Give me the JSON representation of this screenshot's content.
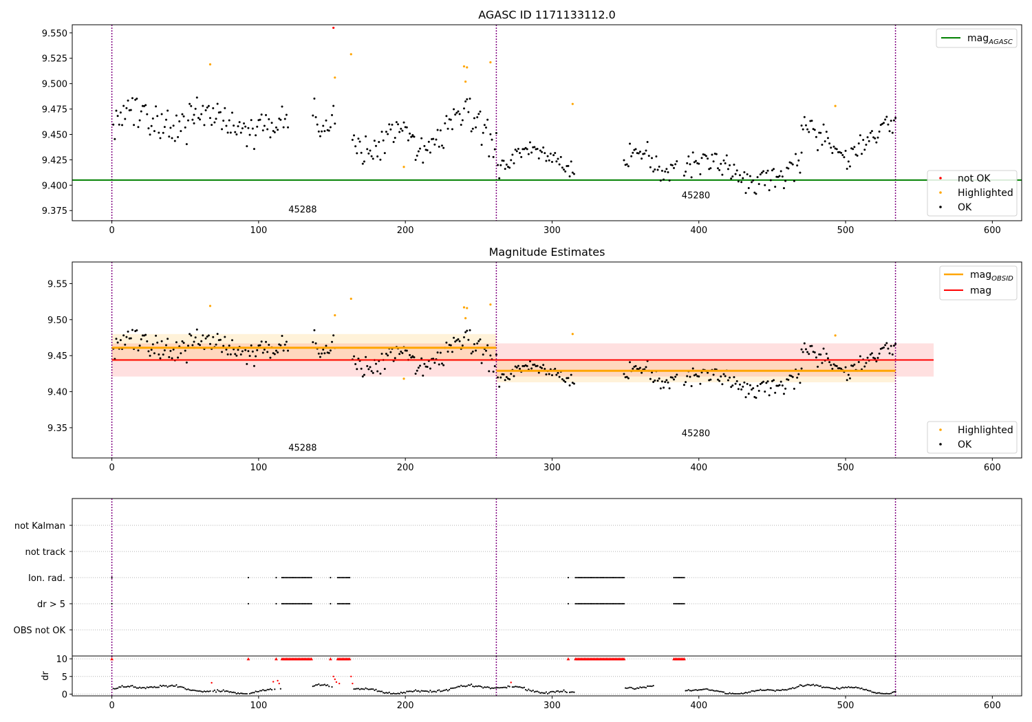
{
  "chart_data": [
    {
      "id": "top",
      "type": "scatter",
      "title": "AGASC ID 1171133112.0",
      "xlim": [
        -27,
        620
      ],
      "ylim": [
        9.365,
        9.558
      ],
      "xticks": [
        0,
        100,
        200,
        300,
        400,
        500,
        600
      ],
      "yticks": [
        9.375,
        9.4,
        9.425,
        9.45,
        9.475,
        9.5,
        9.525,
        9.55
      ],
      "ytick_labels": [
        "9.375",
        "9.400",
        "9.425",
        "9.450",
        "9.475",
        "9.500",
        "9.525",
        "9.550"
      ],
      "vlines": [
        0,
        262,
        534
      ],
      "obsid_labels": [
        {
          "text": "45288",
          "x": 130,
          "y": 9.373
        },
        {
          "text": "45280",
          "x": 398,
          "y": 9.387
        }
      ],
      "hline": {
        "name": "mag_AGASC",
        "legend_main": "mag",
        "legend_sub": "AGASC",
        "y": 9.405,
        "color": "#008000"
      },
      "legend_lines_placement": "upper-right",
      "legend_points_placement": "lower-right",
      "legend_points": [
        {
          "label": "not OK",
          "color": "#ff0000"
        },
        {
          "label": "Highlighted",
          "color": "#ffa500"
        },
        {
          "label": "OK",
          "color": "#000000"
        }
      ],
      "segments": [
        {
          "x0": 1,
          "x1": 56,
          "base": 9.466,
          "amp": 0.012,
          "noise": 0.014
        },
        {
          "x0": 56,
          "x1": 120,
          "base": 9.462,
          "amp": 0.01,
          "noise": 0.013
        },
        {
          "x0": 137,
          "x1": 152,
          "base": 9.462,
          "amp": 0.01,
          "noise": 0.01
        },
        {
          "x0": 164,
          "x1": 205,
          "base": 9.445,
          "amp": 0.01,
          "noise": 0.012
        },
        {
          "x0": 205,
          "x1": 262,
          "base": 9.452,
          "amp": 0.018,
          "noise": 0.014
        },
        {
          "x0": 263,
          "x1": 315,
          "base": 9.426,
          "amp": 0.01,
          "noise": 0.01
        },
        {
          "x0": 349,
          "x1": 385,
          "base": 9.425,
          "amp": 0.012,
          "noise": 0.011
        },
        {
          "x0": 390,
          "x1": 470,
          "base": 9.415,
          "amp": 0.01,
          "noise": 0.011
        },
        {
          "x0": 470,
          "x1": 534,
          "base": 9.446,
          "amp": 0.012,
          "noise": 0.011
        }
      ],
      "special_points": [
        {
          "x": 67,
          "y": 9.519,
          "status": "Highlighted"
        },
        {
          "x": 152,
          "y": 9.506,
          "status": "Highlighted"
        },
        {
          "x": 163,
          "y": 9.529,
          "status": "Highlighted"
        },
        {
          "x": 199,
          "y": 9.418,
          "status": "Highlighted"
        },
        {
          "x": 240,
          "y": 9.517,
          "status": "Highlighted"
        },
        {
          "x": 242,
          "y": 9.516,
          "status": "Highlighted"
        },
        {
          "x": 241,
          "y": 9.502,
          "status": "Highlighted"
        },
        {
          "x": 258,
          "y": 9.521,
          "status": "Highlighted"
        },
        {
          "x": 314,
          "y": 9.48,
          "status": "Highlighted"
        },
        {
          "x": 493,
          "y": 9.478,
          "status": "Highlighted"
        },
        {
          "x": 151,
          "y": 9.555,
          "status": "not OK"
        }
      ]
    },
    {
      "id": "middle",
      "type": "scatter",
      "title": "Magnitude Estimates",
      "xlim": [
        -27,
        620
      ],
      "ylim": [
        9.308,
        9.58
      ],
      "xticks": [
        0,
        100,
        200,
        300,
        400,
        500,
        600
      ],
      "yticks": [
        9.35,
        9.4,
        9.45,
        9.5,
        9.55
      ],
      "ytick_labels": [
        "9.35",
        "9.40",
        "9.45",
        "9.50",
        "9.55"
      ],
      "vlines": [
        0,
        262,
        534
      ],
      "obsid_labels": [
        {
          "text": "45288",
          "x": 130,
          "y": 9.318
        },
        {
          "text": "45280",
          "x": 398,
          "y": 9.338
        }
      ],
      "mag": {
        "name": "mag",
        "y": 9.444,
        "band": [
          9.421,
          9.467
        ],
        "x0": 0,
        "x1": 560,
        "color": "#ff0000"
      },
      "mag_obsid": [
        {
          "x0": 0,
          "x1": 262,
          "y": 9.461,
          "band": [
            9.442,
            9.48
          ]
        },
        {
          "x0": 262,
          "x1": 534,
          "y": 9.429,
          "band": [
            9.413,
            9.445
          ]
        }
      ],
      "legend_lines": [
        {
          "label": "mag",
          "sub": "OBSID",
          "color": "#ffa500"
        },
        {
          "label": "mag",
          "sub": "",
          "color": "#ff0000"
        }
      ],
      "legend_points": [
        {
          "label": "Highlighted",
          "color": "#ffa500"
        },
        {
          "label": "OK",
          "color": "#000000"
        }
      ]
    },
    {
      "id": "flags",
      "type": "scatter",
      "xlim": [
        -27,
        620
      ],
      "categories": [
        "not Kalman",
        "not track",
        "Ion. rad.",
        "dr > 5",
        "OBS not OK"
      ],
      "vlines": [
        0,
        262,
        534
      ],
      "flag_ranges": [
        {
          "category": "Ion. rad.",
          "ranges": [
            [
              0,
              0
            ],
            [
              93,
              93
            ],
            [
              112,
              112
            ],
            [
              116,
              136
            ],
            [
              149,
              149
            ],
            [
              154,
              162
            ],
            [
              311,
              311
            ],
            [
              316,
              349
            ],
            [
              383,
              390
            ]
          ]
        },
        {
          "category": "dr > 5",
          "ranges": [
            [
              0,
              0
            ],
            [
              93,
              93
            ],
            [
              112,
              112
            ],
            [
              116,
              136
            ],
            [
              149,
              149
            ],
            [
              154,
              162
            ],
            [
              311,
              311
            ],
            [
              316,
              349
            ],
            [
              383,
              390
            ]
          ]
        }
      ]
    },
    {
      "id": "dr",
      "type": "scatter",
      "ylabel": "dr",
      "xlim": [
        -27,
        620
      ],
      "ylim": [
        -0.5,
        10.8
      ],
      "xticks": [
        0,
        100,
        200,
        300,
        400,
        500,
        600
      ],
      "yticks": [
        0,
        5,
        10
      ],
      "ytick_labels": [
        "0",
        "5",
        "10"
      ],
      "vlines": [
        0,
        262,
        534
      ],
      "clipped_value": 10,
      "clipped_ranges": [
        [
          0,
          0
        ],
        [
          93,
          93
        ],
        [
          112,
          112
        ],
        [
          116,
          136
        ],
        [
          149,
          149
        ],
        [
          154,
          162
        ],
        [
          311,
          311
        ],
        [
          316,
          349
        ],
        [
          383,
          390
        ]
      ],
      "gaps": [
        [
          116,
          136
        ],
        [
          154,
          162
        ],
        [
          316,
          349
        ],
        [
          370,
          390
        ]
      ],
      "red_points": [
        {
          "x": 68,
          "y": 3.2
        },
        {
          "x": 110,
          "y": 3.5
        },
        {
          "x": 113,
          "y": 3.8
        },
        {
          "x": 114,
          "y": 3.0
        },
        {
          "x": 151,
          "y": 5.0
        },
        {
          "x": 152,
          "y": 4.2
        },
        {
          "x": 153,
          "y": 3.4
        },
        {
          "x": 155,
          "y": 3.0
        },
        {
          "x": 163,
          "y": 5.0
        },
        {
          "x": 164,
          "y": 3.0
        },
        {
          "x": 272,
          "y": 3.3
        }
      ]
    }
  ]
}
